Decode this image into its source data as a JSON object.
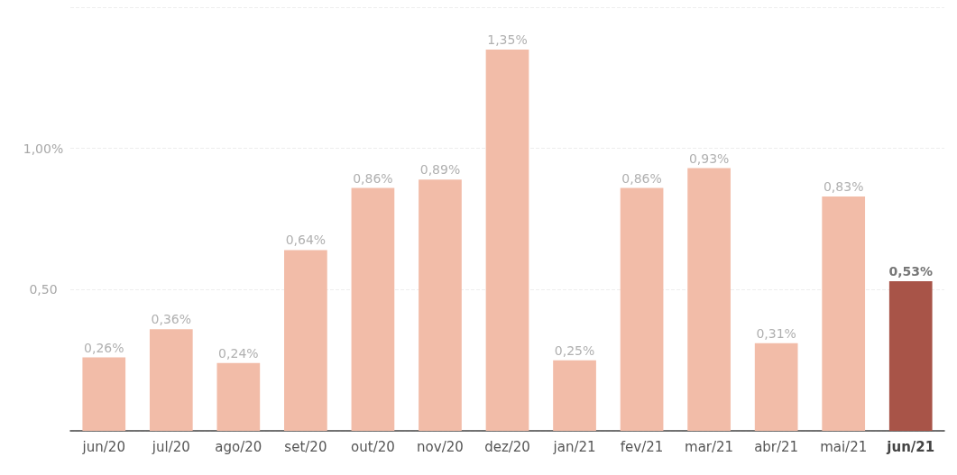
{
  "chart_data": {
    "type": "bar",
    "categories": [
      "jun/20",
      "jul/20",
      "ago/20",
      "set/20",
      "out/20",
      "nov/20",
      "dez/20",
      "jan/21",
      "fev/21",
      "mar/21",
      "abr/21",
      "mai/21",
      "jun/21"
    ],
    "values": [
      0.26,
      0.36,
      0.24,
      0.64,
      0.86,
      0.89,
      1.35,
      0.25,
      0.86,
      0.93,
      0.31,
      0.83,
      0.53
    ],
    "colors": [
      "#f2bca8",
      "#f2bca8",
      "#f2bca8",
      "#f2bca8",
      "#f2bca8",
      "#f2bca8",
      "#f2bca8",
      "#f2bca8",
      "#f2bca8",
      "#f2bca8",
      "#f2bca8",
      "#f2bca8",
      "#a85448"
    ],
    "value_labels": [
      "0,26%",
      "0,36%",
      "0,24%",
      "0,64%",
      "0,86%",
      "0,89%",
      "1,35%",
      "0,25%",
      "0,86%",
      "0,93%",
      "0,31%",
      "0,83%",
      "0,53%"
    ],
    "yticks": [
      {
        "value": 0,
        "label": null
      },
      {
        "value": 0.5,
        "label": "0,50"
      },
      {
        "value": 1,
        "label": "1,00%"
      },
      {
        "value": 1.5,
        "label": null
      }
    ],
    "ylim": [
      0,
      1.5
    ],
    "grid": "y"
  }
}
